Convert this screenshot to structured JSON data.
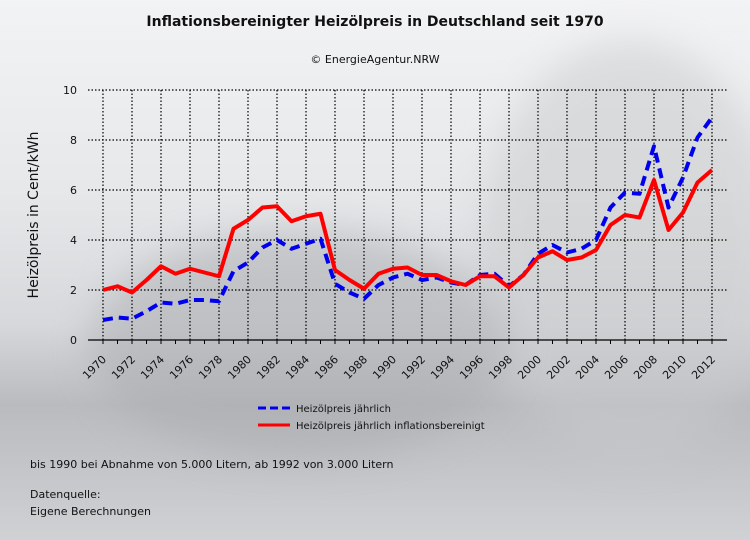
{
  "chart_data": {
    "type": "line",
    "title": "Inflationsbereinigter Heizölpreis in Deutschland seit 1970",
    "subtitle": "© EnergieAgentur.NRW",
    "xlabel": "",
    "ylabel": "Heizölpreis in Cent/kWh",
    "ylim": [
      0,
      10
    ],
    "yticks": [
      "0",
      "2",
      "4",
      "6",
      "8",
      "10"
    ],
    "xlim": [
      1970,
      2012
    ],
    "xticks": [
      "1970",
      "1972",
      "1974",
      "1976",
      "1978",
      "1980",
      "1982",
      "1984",
      "1986",
      "1988",
      "1990",
      "1992",
      "1994",
      "1996",
      "1998",
      "2000",
      "2002",
      "2004",
      "2006",
      "2008",
      "2010",
      "2012"
    ],
    "grid": true,
    "legend_position": "bottom-center",
    "x": [
      1970,
      1971,
      1972,
      1973,
      1974,
      1975,
      1976,
      1977,
      1978,
      1979,
      1980,
      1981,
      1982,
      1983,
      1984,
      1985,
      1986,
      1987,
      1988,
      1989,
      1990,
      1991,
      1992,
      1993,
      1994,
      1995,
      1996,
      1997,
      1998,
      1999,
      2000,
      2001,
      2002,
      2003,
      2004,
      2005,
      2006,
      2007,
      2008,
      2009,
      2010,
      2011,
      2012
    ],
    "series": [
      {
        "name": "Heizölpreis jährlich",
        "color": "#0000ee",
        "dash": true,
        "values": [
          0.8,
          0.9,
          0.85,
          1.15,
          1.5,
          1.45,
          1.6,
          1.6,
          1.55,
          2.75,
          3.1,
          3.7,
          4.0,
          3.65,
          3.85,
          4.05,
          2.25,
          1.9,
          1.65,
          2.2,
          2.5,
          2.65,
          2.4,
          2.5,
          2.3,
          2.2,
          2.6,
          2.65,
          2.15,
          2.6,
          3.45,
          3.8,
          3.5,
          3.65,
          4.0,
          5.3,
          5.9,
          5.85,
          7.75,
          5.3,
          6.5,
          8.1,
          8.9
        ]
      },
      {
        "name": "Heizölpreis jährlich inflationsbereinigt",
        "color": "#ff0000",
        "dash": false,
        "values": [
          2.0,
          2.15,
          1.9,
          2.4,
          2.95,
          2.65,
          2.85,
          2.7,
          2.55,
          4.45,
          4.8,
          5.3,
          5.35,
          4.75,
          4.95,
          5.05,
          2.8,
          2.4,
          2.05,
          2.65,
          2.85,
          2.9,
          2.6,
          2.6,
          2.35,
          2.2,
          2.55,
          2.55,
          2.1,
          2.6,
          3.3,
          3.55,
          3.2,
          3.3,
          3.6,
          4.6,
          5.0,
          4.9,
          6.4,
          4.4,
          5.1,
          6.3,
          6.8
        ]
      }
    ]
  },
  "notes": {
    "volume": "bis 1990 bei Abnahme von 5.000 Litern, ab 1992 von 3.000 Litern",
    "source_label": "Datenquelle:",
    "source": "Eigene Berechnungen"
  }
}
